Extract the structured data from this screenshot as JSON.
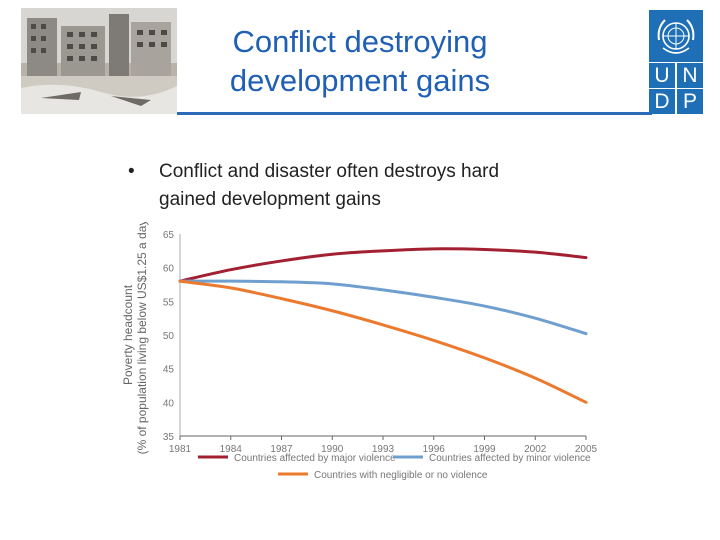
{
  "slide": {
    "title_line1": "Conflict destroying",
    "title_line2": "development gains",
    "bullet_symbol": "•",
    "bullet_text": "Conflict and disaster often destroys hard gained development gains"
  },
  "logo": {
    "letters": [
      "U",
      "N",
      "D",
      "P"
    ],
    "color": "#1f6fb6"
  },
  "colors": {
    "title": "#1f5fb4",
    "major": "#a32032",
    "minor": "#6f9fcf",
    "negligible": "#ec7a2e"
  },
  "chart_data": {
    "type": "line",
    "ylabel_line1": "Poverty headcount",
    "ylabel_line2": "(% of population living below US$1.25 a day)",
    "xlabel": "",
    "ylim": [
      35,
      65
    ],
    "yticks": [
      "65",
      "60",
      "55",
      "50",
      "45",
      "40",
      "35"
    ],
    "ytick_values": [
      65,
      60,
      55,
      50,
      45,
      40,
      35
    ],
    "categories": [
      "1981",
      "1984",
      "1987",
      "1990",
      "1993",
      "1996",
      "1999",
      "2002",
      "2005"
    ],
    "x": [
      1981,
      1984,
      1987,
      1990,
      1993,
      1996,
      1999,
      2002,
      2005
    ],
    "grid": false,
    "legend_position": "bottom",
    "series": [
      {
        "name": "Countries affected by major violence",
        "color": "#a32032",
        "values": [
          58,
          59.7,
          61,
          62,
          62.5,
          62.8,
          62.7,
          62.3,
          61.5
        ]
      },
      {
        "name": "Countries affected by minor violence",
        "color": "#6f9fcf",
        "values": [
          58,
          58,
          57.9,
          57.6,
          56.7,
          55.6,
          54.3,
          52.5,
          50.2
        ]
      },
      {
        "name": "Countries with negligible or no violence",
        "color": "#ec7a2e",
        "values": [
          58,
          57,
          55.4,
          53.6,
          51.5,
          49.2,
          46.6,
          43.6,
          40
        ]
      }
    ]
  }
}
